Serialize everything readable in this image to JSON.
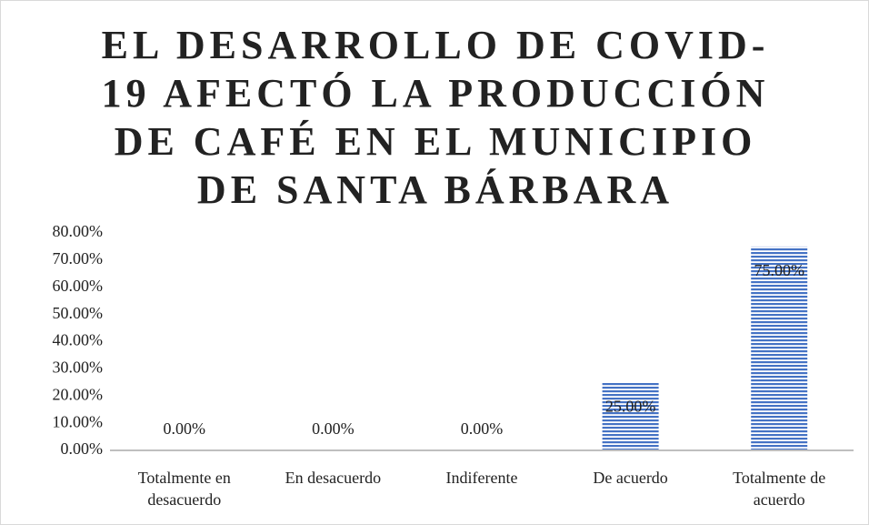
{
  "chart_data": {
    "type": "bar",
    "title": "EL DESARROLLO DE COVID-19 AFECTÓ LA PRODUCCIÓN DE CAFÉ EN EL MUNICIPIO DE SANTA BÁRBARA",
    "categories": [
      "Totalmente en desacuerdo",
      "En desacuerdo",
      "Indiferente",
      "De acuerdo",
      "Totalmente de acuerdo"
    ],
    "values": [
      0,
      0,
      0,
      25,
      75
    ],
    "value_labels": [
      "0.00%",
      "0.00%",
      "0.00%",
      "25.00%",
      "75.00%"
    ],
    "color": "#4472c4",
    "ylim": [
      0,
      80
    ],
    "yticks": [
      {
        "value": 0,
        "label": "0.00%"
      },
      {
        "value": 10,
        "label": "10.00%"
      },
      {
        "value": 20,
        "label": "20.00%"
      },
      {
        "value": 30,
        "label": "30.00%"
      },
      {
        "value": 40,
        "label": "40.00%"
      },
      {
        "value": 50,
        "label": "50.00%"
      },
      {
        "value": 60,
        "label": "60.00%"
      },
      {
        "value": 70,
        "label": "70.00%"
      },
      {
        "value": 80,
        "label": "80.00%"
      }
    ],
    "grid": false
  }
}
